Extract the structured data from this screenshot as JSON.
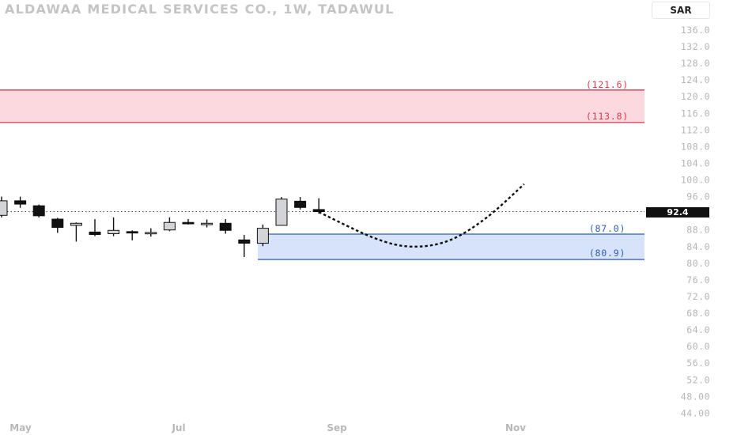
{
  "header": {
    "title": "ALDAWAA MEDICAL SERVICES CO., 1W, TADAWUL",
    "currency": "SAR"
  },
  "price_tag": "92.4",
  "colors": {
    "resistance_fill": "#fcd9de",
    "resistance_line": "#d9384c",
    "support_fill": "#d6e3fb",
    "support_line": "#2e5fb4",
    "bull_body": "#d2d4d8",
    "bear_body": "#111111",
    "axis_text": "#b5b5b5"
  },
  "chart_data": {
    "type": "candlestick",
    "title": "ALDAWAA MEDICAL SERVICES CO., 1W, TADAWUL",
    "y_axis": {
      "ticks": [
        "136.0",
        "132.0",
        "128.0",
        "124.0",
        "120.0",
        "116.0",
        "112.0",
        "108.0",
        "104.0",
        "100.0",
        "96.0",
        "92.0",
        "88.0",
        "84.0",
        "80.0",
        "76.0",
        "72.0",
        "68.0",
        "64.0",
        "60.0",
        "56.0",
        "52.0",
        "48.00",
        "44.00"
      ],
      "ylim": [
        44,
        136
      ],
      "position": "right"
    },
    "x_axis": {
      "labels": [
        "May",
        "Jul",
        "Sep",
        "Nov"
      ]
    },
    "candles": [
      {
        "o": 91.5,
        "h": 96.0,
        "l": 91.0,
        "c": 95.0
      },
      {
        "o": 95.0,
        "h": 96.0,
        "l": 93.3,
        "c": 94.2
      },
      {
        "o": 93.8,
        "h": 94.1,
        "l": 91.0,
        "c": 91.4
      },
      {
        "o": 90.6,
        "h": 90.9,
        "l": 87.3,
        "c": 88.6
      },
      {
        "o": 89.1,
        "h": 89.8,
        "l": 85.2,
        "c": 89.6
      },
      {
        "o": 87.5,
        "h": 90.6,
        "l": 86.5,
        "c": 86.9
      },
      {
        "o": 87.1,
        "h": 91.0,
        "l": 86.5,
        "c": 87.9
      },
      {
        "o": 87.6,
        "h": 87.9,
        "l": 85.5,
        "c": 87.3
      },
      {
        "o": 87.4,
        "h": 88.4,
        "l": 86.4,
        "c": 87.4
      },
      {
        "o": 88.0,
        "h": 91.0,
        "l": 87.7,
        "c": 89.8
      },
      {
        "o": 89.8,
        "h": 90.6,
        "l": 89.3,
        "c": 89.6
      },
      {
        "o": 89.3,
        "h": 90.5,
        "l": 88.6,
        "c": 89.6
      },
      {
        "o": 89.6,
        "h": 90.6,
        "l": 87.1,
        "c": 87.9
      },
      {
        "o": 85.6,
        "h": 86.8,
        "l": 81.5,
        "c": 84.8
      },
      {
        "o": 84.8,
        "h": 89.3,
        "l": 84.1,
        "c": 88.4
      },
      {
        "o": 89.1,
        "h": 95.9,
        "l": 89.0,
        "c": 95.4
      },
      {
        "o": 94.9,
        "h": 95.9,
        "l": 92.9,
        "c": 93.4
      },
      {
        "o": 92.9,
        "h": 95.6,
        "l": 91.9,
        "c": 92.4
      }
    ],
    "zones": [
      {
        "name": "resistance",
        "top": 121.6,
        "bottom": 113.8,
        "labels": [
          "(121.6)",
          "(113.8)"
        ]
      },
      {
        "name": "support",
        "top": 87.0,
        "bottom": 80.9,
        "labels": [
          "(87.0)",
          "(80.9)"
        ]
      }
    ],
    "last_price": 92.4,
    "projection": {
      "style": "dashed-curve",
      "points": [
        [
          17,
          92.3
        ],
        [
          20,
          86
        ],
        [
          22,
          84
        ],
        [
          24,
          85.5
        ],
        [
          26,
          91
        ],
        [
          28,
          99
        ]
      ]
    }
  }
}
